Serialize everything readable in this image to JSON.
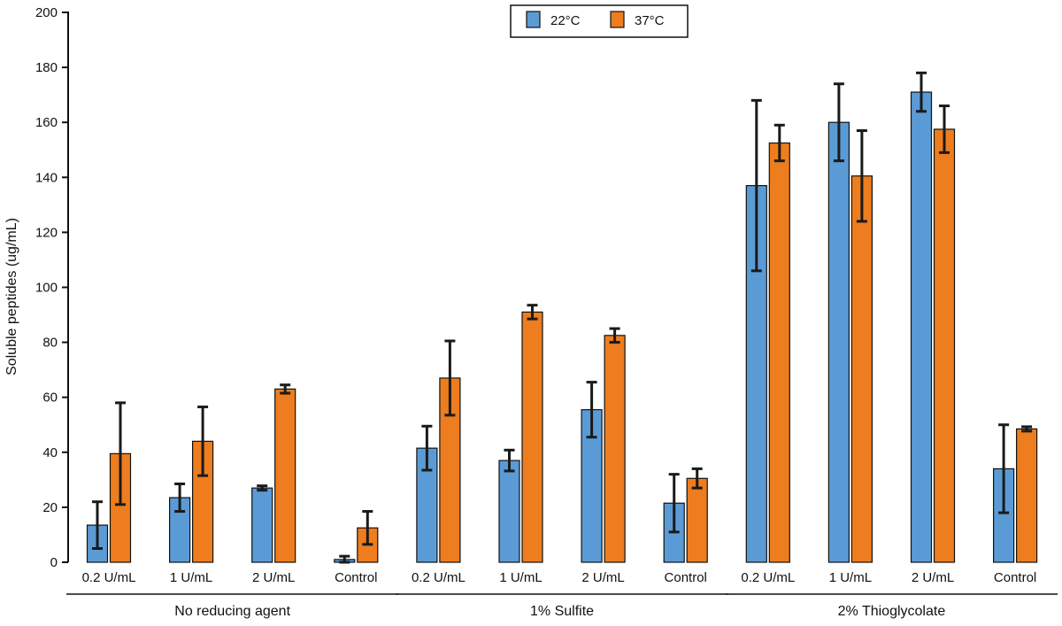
{
  "chart_data": {
    "type": "bar",
    "ylabel": "Soluble peptides (ug/mL)",
    "ylim": [
      0,
      200
    ],
    "yticks": [
      0,
      20,
      40,
      60,
      80,
      100,
      120,
      140,
      160,
      180,
      200
    ],
    "grid": false,
    "legend_position": "top-center",
    "groups": [
      {
        "label": "No reducing agent",
        "categories": [
          "0.2 U/mL",
          "1 U/mL",
          "2 U/mL",
          "Control"
        ]
      },
      {
        "label": "1% Sulfite",
        "categories": [
          "0.2 U/mL",
          "1 U/mL",
          "2 U/mL",
          "Control"
        ]
      },
      {
        "label": "2% Thioglycolate",
        "categories": [
          "0.2 U/mL",
          "1 U/mL",
          "2 U/mL",
          "Control"
        ]
      }
    ],
    "series": [
      {
        "name": "22°C",
        "color": "#5b9bd5",
        "values": [
          13.5,
          23.5,
          27,
          1,
          41.5,
          37,
          55.5,
          21.5,
          137,
          160,
          171,
          34
        ],
        "errors": [
          8.5,
          5,
          0.8,
          1.2,
          8,
          3.8,
          10,
          10.5,
          31,
          14,
          7,
          16
        ]
      },
      {
        "name": "37°C",
        "color": "#ed7d1e",
        "values": [
          39.5,
          44,
          63,
          12.5,
          67,
          91,
          82.5,
          30.5,
          152.5,
          140.5,
          157.5,
          48.5
        ],
        "errors": [
          18.5,
          12.5,
          1.5,
          6,
          13.5,
          2.5,
          2.5,
          3.5,
          6.5,
          16.5,
          8.5,
          0.8
        ]
      }
    ]
  }
}
